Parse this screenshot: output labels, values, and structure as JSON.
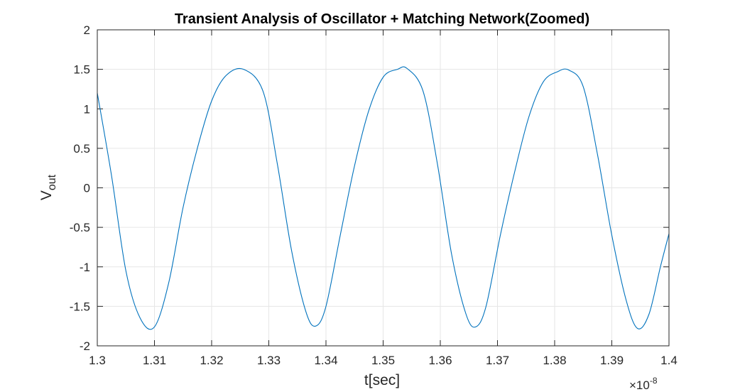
{
  "chart_data": {
    "type": "line",
    "title": "Transient Analysis of Oscillator + Matching Network(Zoomed)",
    "xlabel": "t[sec]",
    "ylabel_main": "V",
    "ylabel_sub": "out",
    "x_exponent_prefix": "×10",
    "x_exponent_power": "-8",
    "xlim": [
      1.3,
      1.4
    ],
    "ylim": [
      -2,
      2
    ],
    "grid": true,
    "x_ticks": [
      1.3,
      1.31,
      1.32,
      1.33,
      1.34,
      1.35,
      1.36,
      1.37,
      1.38,
      1.39,
      1.4
    ],
    "x_tick_labels": [
      "1.3",
      "1.31",
      "1.32",
      "1.33",
      "1.34",
      "1.35",
      "1.36",
      "1.37",
      "1.38",
      "1.39",
      "1.4"
    ],
    "y_ticks": [
      2,
      1.5,
      1,
      0.5,
      0,
      -0.5,
      -1,
      -1.5,
      -2
    ],
    "y_tick_labels": [
      "2",
      "1.5",
      "1",
      "0.5",
      "0",
      "-0.5",
      "-1",
      "-1.5",
      "-2"
    ],
    "series": [
      {
        "color": "#0072BD",
        "x": [
          1.3,
          1.3025,
          1.305,
          1.3075,
          1.31,
          1.3125,
          1.315,
          1.3175,
          1.32,
          1.3225,
          1.3256,
          1.329,
          1.3315,
          1.334,
          1.3365,
          1.3382,
          1.34,
          1.3425,
          1.345,
          1.3475,
          1.35,
          1.3525,
          1.3542,
          1.357,
          1.3595,
          1.362,
          1.3645,
          1.3662,
          1.368,
          1.3705,
          1.373,
          1.3755,
          1.378,
          1.3805,
          1.3825,
          1.385,
          1.3875,
          1.39,
          1.3925,
          1.3945,
          1.3965,
          1.3985,
          1.4
        ],
        "y": [
          1.2,
          0.15,
          -1.05,
          -1.65,
          -1.76,
          -1.2,
          -0.25,
          0.5,
          1.1,
          1.42,
          1.5,
          1.22,
          0.3,
          -0.8,
          -1.57,
          -1.75,
          -1.5,
          -0.6,
          0.28,
          0.98,
          1.4,
          1.5,
          1.51,
          1.22,
          0.3,
          -0.85,
          -1.6,
          -1.76,
          -1.5,
          -0.6,
          0.2,
          0.9,
          1.34,
          1.47,
          1.49,
          1.28,
          0.42,
          -0.6,
          -1.42,
          -1.78,
          -1.6,
          -1.0,
          -0.58
        ]
      }
    ]
  }
}
